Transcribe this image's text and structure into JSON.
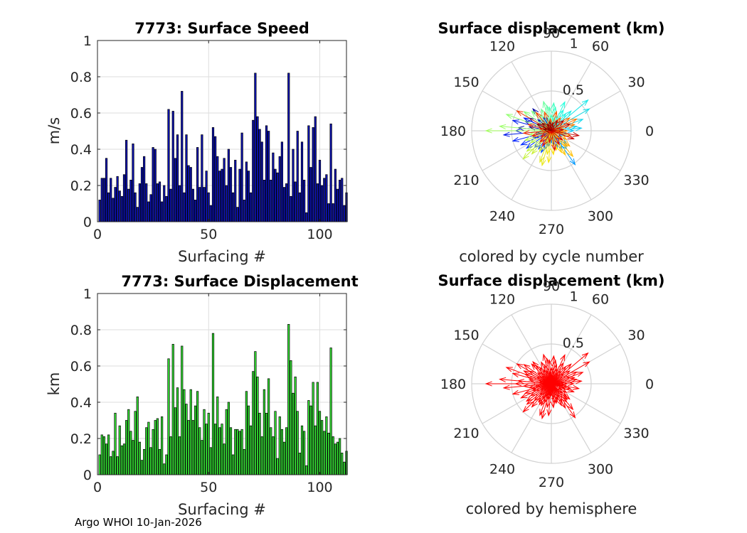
{
  "footer": "Argo WHOI 10-Jan-2026",
  "chart_data": [
    {
      "type": "bar",
      "title": "7773: Surface Speed",
      "xlabel": "Surfacing #",
      "ylabel": "m/s",
      "xlim": [
        0,
        112
      ],
      "ylim": [
        0,
        1
      ],
      "xticks": [
        "0",
        "50",
        "100"
      ],
      "yticks": [
        "0",
        "0.2",
        "0.4",
        "0.6",
        "0.8",
        "1"
      ],
      "color": "#0c12b4",
      "values": [
        0.12,
        0.24,
        0.24,
        0.35,
        0.16,
        0.24,
        0.13,
        0.19,
        0.25,
        0.17,
        0.14,
        0.26,
        0.45,
        0.18,
        0.23,
        0.43,
        0.16,
        0.08,
        0.21,
        0.3,
        0.36,
        0.21,
        0.11,
        0.15,
        0.41,
        0.4,
        0.21,
        0.22,
        0.11,
        0.2,
        0.14,
        0.62,
        0.18,
        0.61,
        0.35,
        0.48,
        0.2,
        0.72,
        0.16,
        0.48,
        0.31,
        0.3,
        0.18,
        0.12,
        0.41,
        0.19,
        0.48,
        0.19,
        0.28,
        0.16,
        0.09,
        0.52,
        0.47,
        0.36,
        0.28,
        0.29,
        0.35,
        0.2,
        0.4,
        0.3,
        0.16,
        0.34,
        0.08,
        0.29,
        0.49,
        0.12,
        0.33,
        0.28,
        0.16,
        0.56,
        0.82,
        0.58,
        0.51,
        0.44,
        0.23,
        0.53,
        0.5,
        0.23,
        0.38,
        0.29,
        0.27,
        0.36,
        0.44,
        0.19,
        0.21,
        0.82,
        0.14,
        0.4,
        0.22,
        0.5,
        0.16,
        0.44,
        0.23,
        0.05,
        0.53,
        0.3,
        0.52,
        0.58,
        0.21,
        0.34,
        0.2,
        0.24,
        0.26,
        0.1,
        0.54,
        0.1,
        0.29,
        0.18,
        0.23,
        0.24,
        0.09,
        0.16
      ]
    },
    {
      "type": "bar",
      "title": "7773: Surface Displacement",
      "xlabel": "Surfacing #",
      "ylabel": "km",
      "xlim": [
        0,
        112
      ],
      "ylim": [
        0,
        1
      ],
      "xticks": [
        "0",
        "50",
        "100"
      ],
      "yticks": [
        "0",
        "0.2",
        "0.4",
        "0.6",
        "0.8",
        "1"
      ],
      "color": "#33e033",
      "values": [
        0.11,
        0.22,
        0.21,
        0.17,
        0.22,
        0.1,
        0.13,
        0.34,
        0.1,
        0.27,
        0.16,
        0.17,
        0.3,
        0.36,
        0.24,
        0.19,
        0.35,
        0.43,
        0.18,
        0.08,
        0.14,
        0.26,
        0.29,
        0.15,
        0.25,
        0.3,
        0.31,
        0.14,
        0.32,
        0.06,
        0.11,
        0.64,
        0.21,
        0.72,
        0.37,
        0.48,
        0.21,
        0.71,
        0.47,
        0.39,
        0.3,
        0.47,
        0.3,
        0.38,
        0.46,
        0.26,
        0.19,
        0.36,
        0.28,
        0.34,
        0.15,
        0.78,
        0.28,
        0.43,
        0.26,
        0.28,
        0.17,
        0.36,
        0.4,
        0.26,
        0.11,
        0.25,
        0.25,
        0.24,
        0.25,
        0.14,
        0.46,
        0.38,
        0.27,
        0.57,
        0.68,
        0.54,
        0.34,
        0.21,
        0.47,
        0.34,
        0.53,
        0.26,
        0.21,
        0.35,
        0.09,
        0.32,
        0.25,
        0.18,
        0.26,
        0.83,
        0.63,
        0.45,
        0.54,
        0.35,
        0.12,
        0.27,
        0.24,
        0.05,
        0.41,
        0.38,
        0.51,
        0.27,
        0.51,
        0.35,
        0.3,
        0.24,
        0.32,
        0.23,
        0.7,
        0.21,
        0.17,
        0.18,
        0.2,
        0.12,
        0.07,
        0.13
      ]
    },
    {
      "type": "polar",
      "title": "Surface displacement (km)",
      "caption": "colored by cycle number",
      "rmax": 1,
      "rticks": [
        "0.5",
        "1"
      ],
      "angle_ticks": [
        "0",
        "30",
        "60",
        "90",
        "120",
        "150",
        "180",
        "210",
        "240",
        "270",
        "300",
        "330"
      ],
      "colormap": [
        "#00008f",
        "#0020ff",
        "#00a0ff",
        "#20ffdf",
        "#9fff60",
        "#ffdf00",
        "#ff6000",
        "#df0000",
        "#800000"
      ],
      "vectors_deg_km": [
        [
          170,
          0.28
        ],
        [
          150,
          0.32
        ],
        [
          130,
          0.36
        ],
        [
          175,
          0.42
        ],
        [
          190,
          0.18
        ],
        [
          160,
          0.35
        ],
        [
          140,
          0.22
        ],
        [
          200,
          0.25
        ],
        [
          120,
          0.2
        ],
        [
          110,
          0.18
        ],
        [
          180,
          0.45
        ],
        [
          185,
          0.6
        ],
        [
          165,
          0.5
        ],
        [
          155,
          0.38
        ],
        [
          195,
          0.5
        ],
        [
          205,
          0.42
        ],
        [
          215,
          0.38
        ],
        [
          225,
          0.3
        ],
        [
          235,
          0.28
        ],
        [
          245,
          0.3
        ],
        [
          250,
          0.25
        ],
        [
          255,
          0.2
        ],
        [
          260,
          0.2
        ],
        [
          270,
          0.15
        ],
        [
          280,
          0.18
        ],
        [
          290,
          0.22
        ],
        [
          300,
          0.27
        ],
        [
          305,
          0.52
        ],
        [
          310,
          0.3
        ],
        [
          320,
          0.25
        ],
        [
          330,
          0.15
        ],
        [
          340,
          0.18
        ],
        [
          350,
          0.2
        ],
        [
          0,
          0.28
        ],
        [
          5,
          0.38
        ],
        [
          10,
          0.32
        ],
        [
          20,
          0.42
        ],
        [
          30,
          0.55
        ],
        [
          40,
          0.6
        ],
        [
          45,
          0.35
        ],
        [
          50,
          0.28
        ],
        [
          60,
          0.3
        ],
        [
          65,
          0.4
        ],
        [
          70,
          0.2
        ],
        [
          80,
          0.3
        ],
        [
          85,
          0.35
        ],
        [
          90,
          0.2
        ],
        [
          95,
          0.3
        ],
        [
          100,
          0.32
        ],
        [
          105,
          0.38
        ],
        [
          115,
          0.3
        ],
        [
          125,
          0.25
        ],
        [
          135,
          0.35
        ],
        [
          145,
          0.42
        ],
        [
          160,
          0.6
        ],
        [
          175,
          0.65
        ],
        [
          180,
          0.82
        ],
        [
          190,
          0.28
        ],
        [
          200,
          0.35
        ],
        [
          210,
          0.3
        ],
        [
          220,
          0.4
        ],
        [
          225,
          0.5
        ],
        [
          230,
          0.38
        ],
        [
          240,
          0.3
        ],
        [
          245,
          0.18
        ],
        [
          250,
          0.42
        ],
        [
          255,
          0.45
        ],
        [
          260,
          0.3
        ],
        [
          265,
          0.4
        ],
        [
          275,
          0.3
        ],
        [
          285,
          0.25
        ],
        [
          295,
          0.3
        ],
        [
          300,
          0.35
        ],
        [
          310,
          0.42
        ],
        [
          315,
          0.28
        ],
        [
          320,
          0.3
        ],
        [
          330,
          0.22
        ],
        [
          345,
          0.25
        ],
        [
          355,
          0.15
        ],
        [
          0,
          0.2
        ],
        [
          15,
          0.3
        ],
        [
          25,
          0.35
        ],
        [
          35,
          0.28
        ],
        [
          55,
          0.2
        ],
        [
          75,
          0.25
        ],
        [
          95,
          0.15
        ],
        [
          110,
          0.25
        ],
        [
          130,
          0.3
        ],
        [
          150,
          0.5
        ],
        [
          165,
          0.3
        ],
        [
          170,
          0.15
        ],
        [
          185,
          0.35
        ],
        [
          195,
          0.25
        ],
        [
          210,
          0.15
        ],
        [
          225,
          0.2
        ],
        [
          240,
          0.22
        ],
        [
          260,
          0.15
        ],
        [
          280,
          0.25
        ],
        [
          300,
          0.2
        ],
        [
          320,
          0.18
        ],
        [
          340,
          0.3
        ],
        [
          350,
          0.35
        ],
        [
          5,
          0.15
        ],
        [
          20,
          0.25
        ],
        [
          40,
          0.2
        ],
        [
          60,
          0.15
        ],
        [
          80,
          0.1
        ],
        [
          100,
          0.12
        ],
        [
          120,
          0.1
        ],
        [
          140,
          0.15
        ],
        [
          155,
          0.2
        ],
        [
          170,
          0.1
        ]
      ]
    },
    {
      "type": "polar",
      "title": "Surface displacement (km)",
      "caption": "colored by hemisphere",
      "rmax": 1,
      "rticks": [
        "0.5",
        "1"
      ],
      "angle_ticks": [
        "0",
        "30",
        "60",
        "90",
        "120",
        "150",
        "180",
        "210",
        "240",
        "270",
        "300",
        "330"
      ],
      "color": "#ff0000",
      "vectors_deg_km": [
        [
          170,
          0.28
        ],
        [
          150,
          0.32
        ],
        [
          130,
          0.36
        ],
        [
          175,
          0.42
        ],
        [
          190,
          0.18
        ],
        [
          160,
          0.35
        ],
        [
          140,
          0.22
        ],
        [
          200,
          0.25
        ],
        [
          120,
          0.2
        ],
        [
          110,
          0.18
        ],
        [
          180,
          0.45
        ],
        [
          185,
          0.6
        ],
        [
          165,
          0.5
        ],
        [
          155,
          0.38
        ],
        [
          195,
          0.5
        ],
        [
          205,
          0.42
        ],
        [
          215,
          0.38
        ],
        [
          225,
          0.3
        ],
        [
          235,
          0.28
        ],
        [
          245,
          0.3
        ],
        [
          250,
          0.25
        ],
        [
          255,
          0.2
        ],
        [
          260,
          0.2
        ],
        [
          270,
          0.15
        ],
        [
          280,
          0.18
        ],
        [
          290,
          0.22
        ],
        [
          300,
          0.27
        ],
        [
          305,
          0.52
        ],
        [
          310,
          0.3
        ],
        [
          320,
          0.25
        ],
        [
          330,
          0.15
        ],
        [
          340,
          0.18
        ],
        [
          350,
          0.2
        ],
        [
          0,
          0.28
        ],
        [
          5,
          0.38
        ],
        [
          10,
          0.32
        ],
        [
          20,
          0.42
        ],
        [
          30,
          0.55
        ],
        [
          40,
          0.6
        ],
        [
          45,
          0.35
        ],
        [
          50,
          0.28
        ],
        [
          60,
          0.3
        ],
        [
          65,
          0.4
        ],
        [
          70,
          0.2
        ],
        [
          80,
          0.3
        ],
        [
          85,
          0.35
        ],
        [
          90,
          0.2
        ],
        [
          95,
          0.3
        ],
        [
          100,
          0.32
        ],
        [
          105,
          0.38
        ],
        [
          115,
          0.3
        ],
        [
          125,
          0.25
        ],
        [
          135,
          0.35
        ],
        [
          145,
          0.42
        ],
        [
          160,
          0.6
        ],
        [
          175,
          0.65
        ],
        [
          180,
          0.82
        ],
        [
          190,
          0.28
        ],
        [
          200,
          0.35
        ],
        [
          210,
          0.3
        ],
        [
          220,
          0.4
        ],
        [
          225,
          0.5
        ],
        [
          230,
          0.38
        ],
        [
          240,
          0.3
        ],
        [
          245,
          0.18
        ],
        [
          250,
          0.42
        ],
        [
          255,
          0.45
        ],
        [
          260,
          0.3
        ],
        [
          265,
          0.4
        ],
        [
          275,
          0.3
        ],
        [
          285,
          0.25
        ],
        [
          295,
          0.3
        ],
        [
          300,
          0.35
        ],
        [
          310,
          0.42
        ],
        [
          315,
          0.28
        ],
        [
          320,
          0.3
        ],
        [
          330,
          0.22
        ],
        [
          345,
          0.25
        ],
        [
          355,
          0.15
        ],
        [
          0,
          0.2
        ],
        [
          15,
          0.3
        ],
        [
          25,
          0.35
        ],
        [
          35,
          0.28
        ],
        [
          55,
          0.2
        ],
        [
          75,
          0.25
        ],
        [
          95,
          0.15
        ],
        [
          110,
          0.25
        ],
        [
          130,
          0.3
        ],
        [
          150,
          0.5
        ],
        [
          165,
          0.3
        ],
        [
          170,
          0.15
        ],
        [
          185,
          0.35
        ],
        [
          195,
          0.25
        ],
        [
          210,
          0.15
        ],
        [
          225,
          0.2
        ],
        [
          240,
          0.22
        ],
        [
          260,
          0.15
        ],
        [
          280,
          0.25
        ],
        [
          300,
          0.2
        ],
        [
          320,
          0.18
        ],
        [
          340,
          0.3
        ],
        [
          350,
          0.35
        ],
        [
          5,
          0.15
        ],
        [
          20,
          0.25
        ],
        [
          40,
          0.2
        ],
        [
          60,
          0.15
        ],
        [
          80,
          0.1
        ],
        [
          100,
          0.12
        ],
        [
          120,
          0.1
        ],
        [
          140,
          0.15
        ],
        [
          155,
          0.2
        ],
        [
          170,
          0.1
        ]
      ]
    }
  ]
}
